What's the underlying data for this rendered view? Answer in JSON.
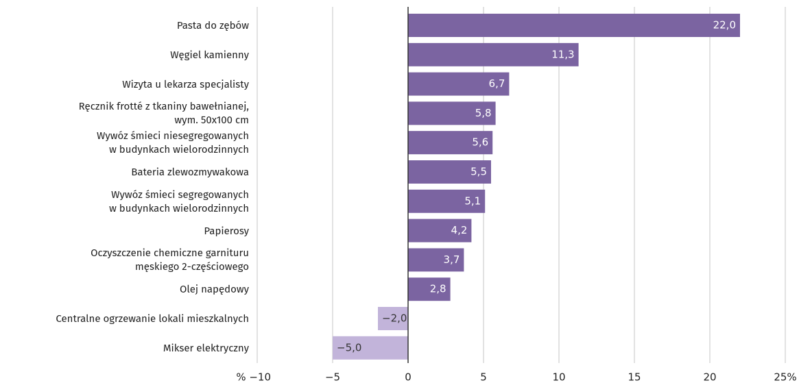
{
  "chart_data": {
    "type": "barh",
    "categories": [
      "Pasta do zębów",
      "Węgiel kamienny",
      "Wizyta u lekarza specjalisty",
      "Ręcznik frotté z tkaniny bawełnianej,\nwym. 50x100 cm",
      "Wywóz śmieci niesegregowanych\nw budynkach wielorodzinnych",
      "Bateria zlewozmywakowa",
      "Wywóz śmieci segregowanych\nw budynkach wielorodzinnych",
      "Papierosy",
      "Oczyszczenie chemiczne garnituru\nmęskiego 2-częściowego",
      "Olej napędowy",
      "Centralne ogrzewanie lokali mieszkalnych",
      "Mikser elektryczny"
    ],
    "values": [
      22.0,
      11.3,
      6.7,
      5.8,
      5.6,
      5.5,
      5.1,
      4.2,
      3.7,
      2.8,
      -2.0,
      -5.0
    ],
    "value_labels": [
      "22,0",
      "11,3",
      "6,7",
      "5,8",
      "5,6",
      "5,5",
      "5,1",
      "4,2",
      "3,7",
      "2,8",
      "−2,0",
      "−5,0"
    ],
    "color": "#7b64a1",
    "negative_color": "#c2b4da",
    "xlim": [
      -10,
      25
    ],
    "xticks": [
      {
        "value": -10,
        "label": "% −10"
      },
      {
        "value": -5,
        "label": "−5"
      },
      0,
      5,
      10,
      15,
      20,
      {
        "value": 25,
        "label": "25%"
      }
    ],
    "grid": true
  }
}
